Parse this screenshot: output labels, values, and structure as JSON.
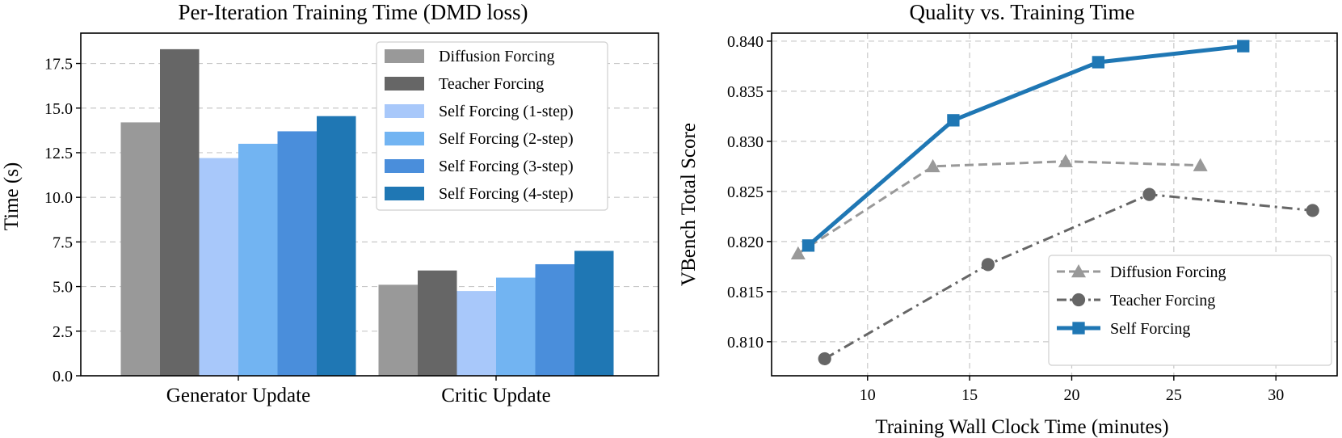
{
  "chart_data": [
    {
      "type": "bar",
      "title": "Per-Iteration Training Time (DMD loss)",
      "xlabel": "",
      "ylabel": "Time (s)",
      "ylim": [
        0,
        19.2
      ],
      "yticks": [
        "0.0",
        "2.5",
        "5.0",
        "7.5",
        "10.0",
        "12.5",
        "15.0",
        "17.5"
      ],
      "ytick_values": [
        0,
        2.5,
        5,
        7.5,
        10,
        12.5,
        15,
        17.5
      ],
      "categories": [
        "Generator Update",
        "Critic Update"
      ],
      "legend_position": "top-right",
      "grid": true,
      "series": [
        {
          "name": "Diffusion Forcing",
          "color": "#999999",
          "values": [
            14.2,
            5.1
          ]
        },
        {
          "name": "Teacher Forcing",
          "color": "#666666",
          "values": [
            18.3,
            5.9
          ]
        },
        {
          "name": "Self Forcing (1-step)",
          "color": "#a8c8fa",
          "values": [
            12.2,
            4.75
          ]
        },
        {
          "name": "Self Forcing (2-step)",
          "color": "#72b4f2",
          "values": [
            13.0,
            5.5
          ]
        },
        {
          "name": "Self Forcing (3-step)",
          "color": "#4a8edb",
          "values": [
            13.7,
            6.25
          ]
        },
        {
          "name": "Self Forcing (4-step)",
          "color": "#1f77b4",
          "values": [
            14.55,
            7.0
          ]
        }
      ]
    },
    {
      "type": "line",
      "title": "Quality vs. Training Time",
      "xlabel": "Training Wall Clock Time (minutes)",
      "ylabel": "VBench Total Score",
      "xlim": [
        5.3,
        33.0
      ],
      "ylim": [
        0.8066,
        0.8408
      ],
      "xticks": [
        "10",
        "15",
        "20",
        "25",
        "30"
      ],
      "xtick_values": [
        10,
        15,
        20,
        25,
        30
      ],
      "yticks": [
        "0.810",
        "0.815",
        "0.820",
        "0.825",
        "0.830",
        "0.835",
        "0.840"
      ],
      "ytick_values": [
        0.81,
        0.815,
        0.82,
        0.825,
        0.83,
        0.835,
        0.84
      ],
      "legend_position": "lower-right",
      "grid": true,
      "series": [
        {
          "name": "Diffusion Forcing",
          "color": "#999999",
          "marker": "triangle",
          "linestyle": "dashed",
          "x": [
            6.6,
            13.2,
            19.7,
            26.3
          ],
          "y": [
            0.8188,
            0.8275,
            0.828,
            0.8276
          ]
        },
        {
          "name": "Teacher Forcing",
          "color": "#666666",
          "marker": "circle",
          "linestyle": "dashdot",
          "x": [
            7.9,
            15.9,
            23.8,
            31.8
          ],
          "y": [
            0.8083,
            0.8177,
            0.8247,
            0.8231
          ]
        },
        {
          "name": "Self Forcing",
          "color": "#1f77b4",
          "marker": "square",
          "linestyle": "solid",
          "x": [
            7.1,
            14.2,
            21.3,
            28.4
          ],
          "y": [
            0.8196,
            0.8321,
            0.8379,
            0.8395
          ]
        }
      ]
    }
  ]
}
